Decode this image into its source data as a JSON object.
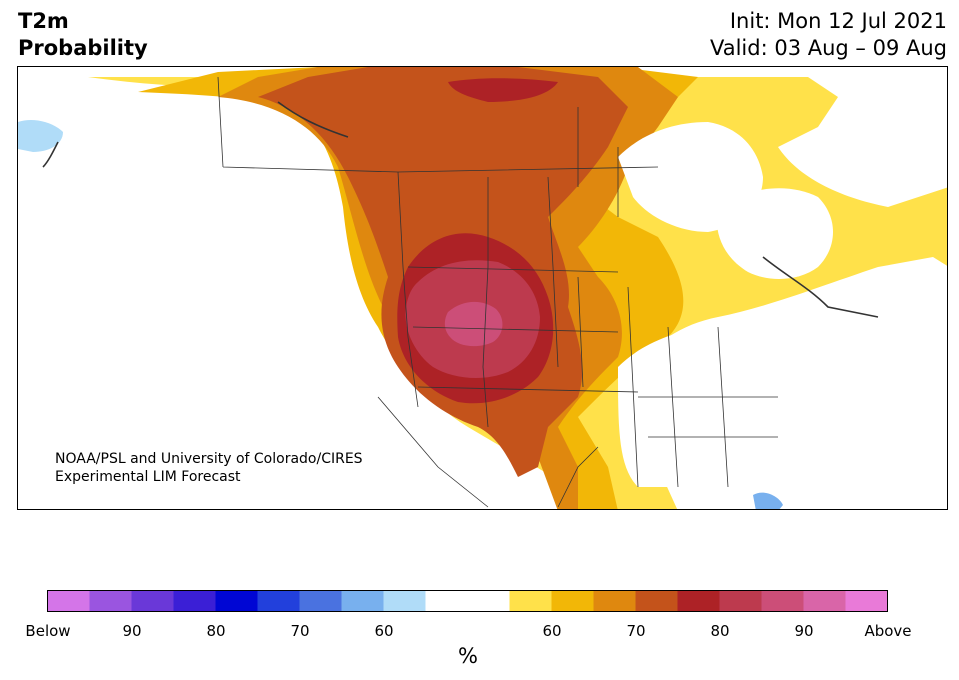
{
  "title": {
    "variable": "T2m",
    "metric": "Probability"
  },
  "init": "Init: Mon 12 Jul 2021",
  "valid": "Valid: 03 Aug – 09 Aug",
  "credit": {
    "line1": "NOAA/PSL and University of Colorado/CIRES",
    "line2": "Experimental LIM Forecast"
  },
  "colorbar": {
    "colors": [
      "#d475e8",
      "#9a55e0",
      "#6a38d8",
      "#3b1fd6",
      "#0006d4",
      "#2240dc",
      "#4a72e0",
      "#78b0ee",
      "#b0dcf8",
      "#ffffff",
      "#ffffff",
      "#ffe14a",
      "#f2b707",
      "#df880f",
      "#c4531b",
      "#ad2226",
      "#bd3a4e",
      "#cc4e78",
      "#d965a8",
      "#e97ad8"
    ],
    "labels": [
      "Below",
      "90",
      "80",
      "70",
      "60",
      "60",
      "70",
      "80",
      "90",
      "Above"
    ],
    "unit": "%"
  },
  "map_colors": {
    "ocean": "#ffffff",
    "land": "#ffffff",
    "borders": "#333333",
    "c55": "#ffe14a",
    "c60": "#f2b707",
    "c65": "#df880f",
    "c70": "#c4531b",
    "c75": "#ad2226",
    "c80": "#bd3a4e",
    "c85": "#cc4e78",
    "blue1": "#b0dcf8",
    "blue2": "#78b0ee"
  }
}
